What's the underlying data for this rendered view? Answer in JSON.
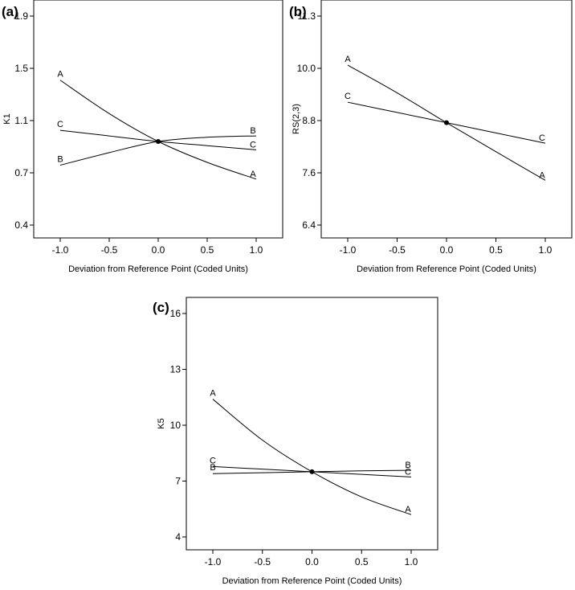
{
  "chart_data": [
    {
      "type": "line",
      "panel_label": "(a)",
      "xlabel": "Deviation from Reference Point (Coded Units)",
      "ylabel": "K1",
      "xlim": [
        -1.0,
        1.0
      ],
      "ylim": [
        0.4,
        1.9
      ],
      "x_ticks": [
        "-1.0",
        "-0.5",
        "0.0",
        "0.5",
        "1.0"
      ],
      "y_ticks": [
        "0.4",
        "0.7",
        "1.1",
        "1.5",
        "1.9"
      ],
      "reference_point": [
        0.0,
        1.0
      ],
      "series": [
        {
          "name": "A",
          "x": [
            -1.0,
            -0.5,
            0.0,
            0.5,
            1.0
          ],
          "y": [
            1.44,
            1.2,
            1.0,
            0.85,
            0.73
          ]
        },
        {
          "name": "B",
          "x": [
            -1.0,
            -0.5,
            0.0,
            0.5,
            1.0
          ],
          "y": [
            0.83,
            0.92,
            1.0,
            1.03,
            1.04
          ]
        },
        {
          "name": "C",
          "x": [
            -1.0,
            -0.5,
            0.0,
            0.5,
            1.0
          ],
          "y": [
            1.08,
            1.04,
            1.0,
            0.97,
            0.94
          ]
        }
      ]
    },
    {
      "type": "line",
      "panel_label": "(b)",
      "xlabel": "Deviation from Reference Point (Coded Units)",
      "ylabel": "RS(2,3)",
      "xlim": [
        -1.0,
        1.0
      ],
      "ylim": [
        6.4,
        11.3
      ],
      "x_ticks": [
        "-1.0",
        "-0.5",
        "0.0",
        "0.5",
        "1.0"
      ],
      "y_ticks": [
        "6.4",
        "7.6",
        "8.8",
        "10.0",
        "11.3"
      ],
      "reference_point": [
        0.0,
        8.8
      ],
      "series": [
        {
          "name": "A",
          "x": [
            -1.0,
            -0.5,
            0.0,
            0.5,
            1.0
          ],
          "y": [
            10.15,
            9.5,
            8.8,
            8.12,
            7.45
          ]
        },
        {
          "name": "C",
          "x": [
            -1.0,
            -0.5,
            0.0,
            0.5,
            1.0
          ],
          "y": [
            9.28,
            9.04,
            8.8,
            8.56,
            8.32
          ]
        }
      ]
    },
    {
      "type": "line",
      "panel_label": "(c)",
      "xlabel": "Deviation from Reference Point (Coded Units)",
      "ylabel": "K5",
      "xlim": [
        -1.0,
        1.0
      ],
      "ylim": [
        4.0,
        16.0
      ],
      "x_ticks": [
        "-1.0",
        "-0.5",
        "0.0",
        "0.5",
        "1.0"
      ],
      "y_ticks": [
        "4",
        "7",
        "10",
        "13",
        "16"
      ],
      "reference_point": [
        0.0,
        7.5
      ],
      "series": [
        {
          "name": "A",
          "x": [
            -1.0,
            -0.5,
            0.0,
            0.5,
            1.0
          ],
          "y": [
            11.4,
            9.2,
            7.5,
            6.15,
            5.2
          ]
        },
        {
          "name": "B",
          "x": [
            -1.0,
            -0.5,
            0.0,
            0.5,
            1.0
          ],
          "y": [
            7.4,
            7.45,
            7.5,
            7.55,
            7.58
          ]
        },
        {
          "name": "C",
          "x": [
            -1.0,
            -0.5,
            0.0,
            0.5,
            1.0
          ],
          "y": [
            7.78,
            7.64,
            7.5,
            7.36,
            7.22
          ]
        }
      ]
    }
  ]
}
